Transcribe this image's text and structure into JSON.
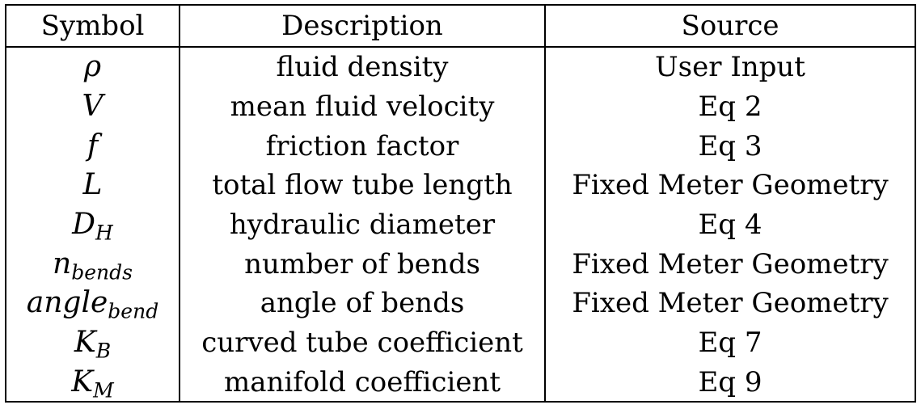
{
  "table": {
    "headers": {
      "symbol": "Symbol",
      "description": "Description",
      "source": "Source"
    },
    "rows": [
      {
        "symbol": "ρ",
        "subscript": "",
        "description": "fluid density",
        "source": "User Input"
      },
      {
        "symbol": "V",
        "subscript": "",
        "description": "mean fluid velocity",
        "source": "Eq 2"
      },
      {
        "symbol": "f",
        "subscript": "",
        "description": "friction factor",
        "source": "Eq 3"
      },
      {
        "symbol": "L",
        "subscript": "",
        "description": "total flow tube length",
        "source": "Fixed Meter Geometry"
      },
      {
        "symbol": "D",
        "subscript": "H",
        "description": "hydraulic diameter",
        "source": "Eq 4"
      },
      {
        "symbol": "n",
        "subscript": "bends",
        "description": "number of bends",
        "source": "Fixed Meter Geometry"
      },
      {
        "symbol": "angle",
        "subscript": "bend",
        "description": "angle of bends",
        "source": "Fixed Meter Geometry"
      },
      {
        "symbol": "K",
        "subscript": "B",
        "description": "curved tube coefficient",
        "source": "Eq 7"
      },
      {
        "symbol": "K",
        "subscript": "M",
        "description": "manifold coefficient",
        "source": "Eq 9"
      }
    ]
  }
}
